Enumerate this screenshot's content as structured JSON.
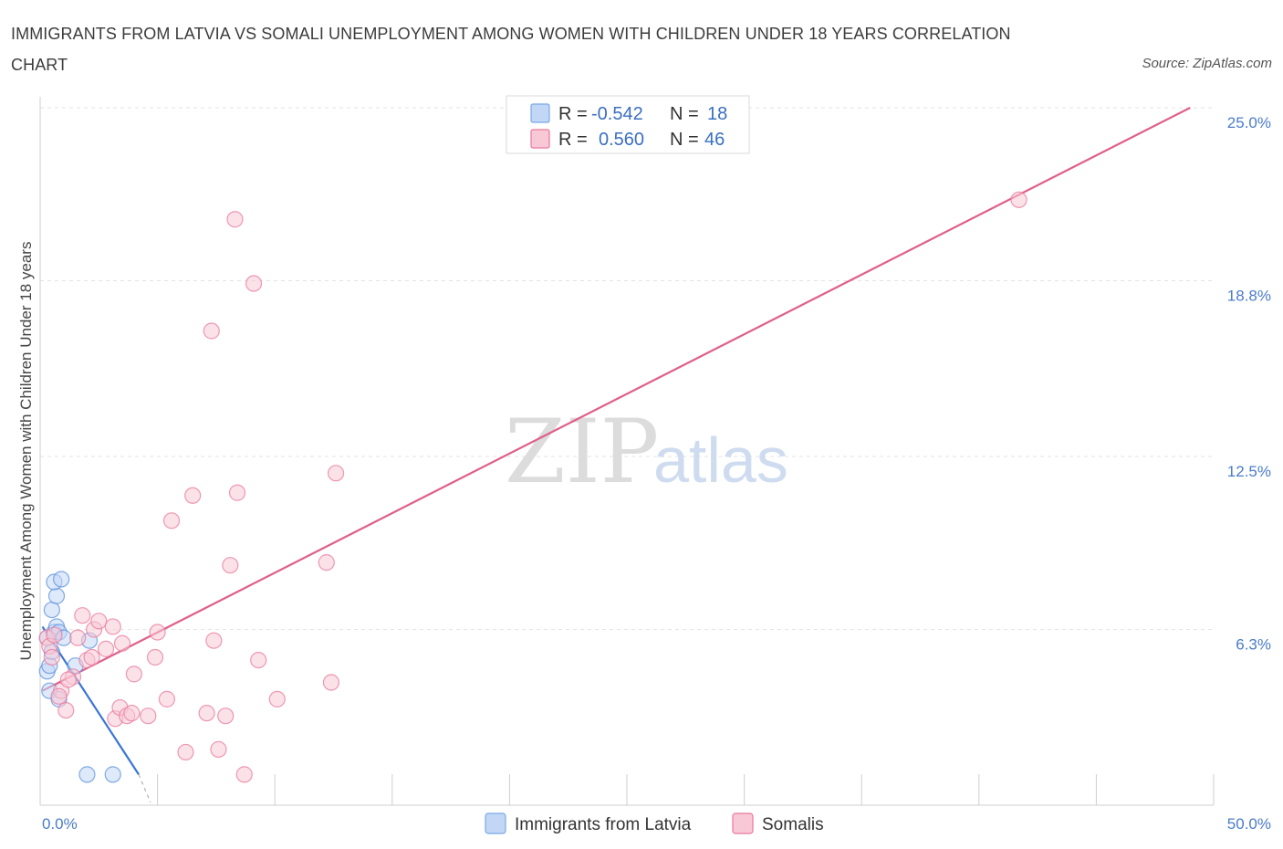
{
  "title": "IMMIGRANTS FROM LATVIA VS SOMALI UNEMPLOYMENT AMONG WOMEN WITH CHILDREN UNDER 18 YEARS CORRELATION CHART",
  "source": "Source: ZipAtlas.com",
  "watermark": {
    "zip": "ZIP",
    "atlas": "atlas"
  },
  "legend": {
    "r_label": "R =",
    "n_label": "N =",
    "entries": [
      {
        "name": "Immigrants from Latvia",
        "r": "-0.542",
        "n": "18",
        "color": "#7aa8e8",
        "fill": "#c2d7f5"
      },
      {
        "name": "Somalis",
        "r": "0.560",
        "n": "46",
        "color": "#e8799c",
        "fill": "#f8c8d6"
      }
    ]
  },
  "chart_data": {
    "type": "scatter",
    "title": "IMMIGRANTS FROM LATVIA VS SOMALI UNEMPLOYMENT AMONG WOMEN WITH CHILDREN UNDER 18 YEARS CORRELATION CHART",
    "xlabel": "",
    "ylabel": "Unemployment Among Women with Children Under 18 years",
    "xlim": [
      0,
      50
    ],
    "ylim": [
      0,
      25
    ],
    "y_ticks": [
      {
        "value": 25.0,
        "label": "25.0%"
      },
      {
        "value": 18.8,
        "label": "18.8%"
      },
      {
        "value": 12.5,
        "label": "12.5%"
      },
      {
        "value": 6.3,
        "label": "6.3%"
      }
    ],
    "x_ticks": [
      {
        "value": 0,
        "label": "0.0%"
      },
      {
        "value": 50,
        "label": "50.0%"
      }
    ],
    "series": [
      {
        "name": "Immigrants from Latvia",
        "color": "#5a8fdc",
        "fill": "#c2d7f5",
        "points": [
          [
            0.3,
            4.8
          ],
          [
            0.4,
            5.0
          ],
          [
            0.5,
            5.5
          ],
          [
            0.3,
            6.0
          ],
          [
            0.6,
            6.2
          ],
          [
            0.7,
            6.4
          ],
          [
            0.5,
            7.0
          ],
          [
            0.7,
            7.5
          ],
          [
            0.6,
            8.0
          ],
          [
            0.9,
            8.1
          ],
          [
            0.8,
            6.2
          ],
          [
            1.0,
            6.0
          ],
          [
            0.4,
            4.1
          ],
          [
            0.8,
            3.8
          ],
          [
            1.5,
            5.0
          ],
          [
            2.1,
            5.9
          ],
          [
            2.0,
            1.1
          ],
          [
            3.1,
            1.1
          ]
        ],
        "trend": {
          "x0": 0.1,
          "y0": 6.4,
          "x1": 4.2,
          "y1": 1.1,
          "dash_to": [
            4.7,
            0.1
          ]
        }
      },
      {
        "name": "Somalis",
        "color": "#e8799c",
        "fill": "#f8c8d6",
        "points": [
          [
            0.3,
            6.0
          ],
          [
            0.4,
            5.7
          ],
          [
            0.5,
            5.3
          ],
          [
            0.6,
            6.1
          ],
          [
            0.9,
            4.1
          ],
          [
            1.1,
            3.4
          ],
          [
            1.4,
            4.6
          ],
          [
            1.6,
            6.0
          ],
          [
            1.8,
            6.8
          ],
          [
            2.0,
            5.2
          ],
          [
            2.2,
            5.3
          ],
          [
            2.3,
            6.3
          ],
          [
            2.5,
            6.6
          ],
          [
            2.8,
            5.6
          ],
          [
            3.1,
            6.4
          ],
          [
            3.2,
            3.1
          ],
          [
            3.4,
            3.5
          ],
          [
            3.5,
            5.8
          ],
          [
            3.7,
            3.2
          ],
          [
            3.9,
            3.3
          ],
          [
            4.0,
            4.7
          ],
          [
            4.6,
            3.2
          ],
          [
            4.9,
            5.3
          ],
          [
            5.0,
            6.2
          ],
          [
            5.4,
            3.8
          ],
          [
            5.6,
            10.2
          ],
          [
            6.2,
            1.9
          ],
          [
            6.5,
            11.1
          ],
          [
            7.1,
            3.3
          ],
          [
            7.3,
            17.0
          ],
          [
            7.4,
            5.9
          ],
          [
            7.6,
            2.0
          ],
          [
            7.9,
            3.2
          ],
          [
            8.1,
            8.6
          ],
          [
            8.3,
            21.0
          ],
          [
            8.4,
            11.2
          ],
          [
            8.7,
            1.1
          ],
          [
            9.1,
            18.7
          ],
          [
            9.3,
            5.2
          ],
          [
            10.1,
            3.8
          ],
          [
            12.2,
            8.7
          ],
          [
            12.4,
            4.4
          ],
          [
            12.6,
            11.9
          ],
          [
            41.7,
            21.7
          ],
          [
            1.2,
            4.5
          ],
          [
            0.8,
            3.9
          ]
        ],
        "trend": {
          "x0": 0.1,
          "y0": 4.1,
          "x1": 49.0,
          "y1": 25.0
        }
      }
    ]
  }
}
